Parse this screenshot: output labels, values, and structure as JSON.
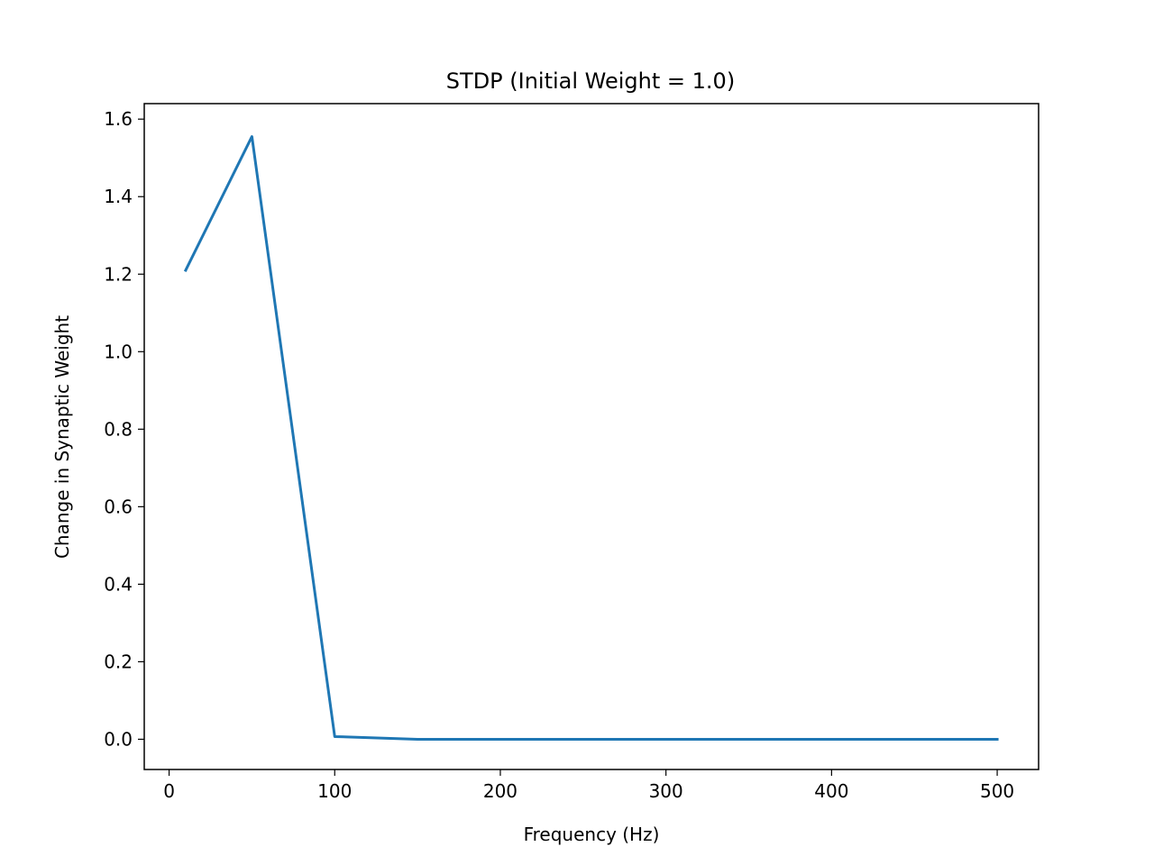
{
  "chart_data": {
    "type": "line",
    "title": "STDP (Initial Weight = 1.0)",
    "xlabel": "Frequency (Hz)",
    "ylabel": "Change in Synaptic Weight",
    "xlim": [
      -15,
      525
    ],
    "ylim": [
      -0.078,
      1.64
    ],
    "xticks": [
      0,
      100,
      200,
      300,
      400,
      500
    ],
    "xtick_labels": [
      "0",
      "100",
      "200",
      "300",
      "400",
      "500"
    ],
    "yticks": [
      0.0,
      0.2,
      0.4,
      0.6,
      0.8,
      1.0,
      1.2,
      1.4,
      1.6
    ],
    "ytick_labels": [
      "0.0",
      "0.2",
      "0.4",
      "0.6",
      "0.8",
      "1.0",
      "1.2",
      "1.4",
      "1.6"
    ],
    "grid": false,
    "series": [
      {
        "color": "#1f77b4",
        "x": [
          10,
          50,
          100,
          150,
          200,
          250,
          300,
          350,
          400,
          450,
          500
        ],
        "y": [
          1.21,
          1.555,
          0.007,
          0.0,
          0.0,
          0.0,
          0.0,
          0.0,
          0.0,
          0.0,
          0.0
        ]
      }
    ]
  }
}
